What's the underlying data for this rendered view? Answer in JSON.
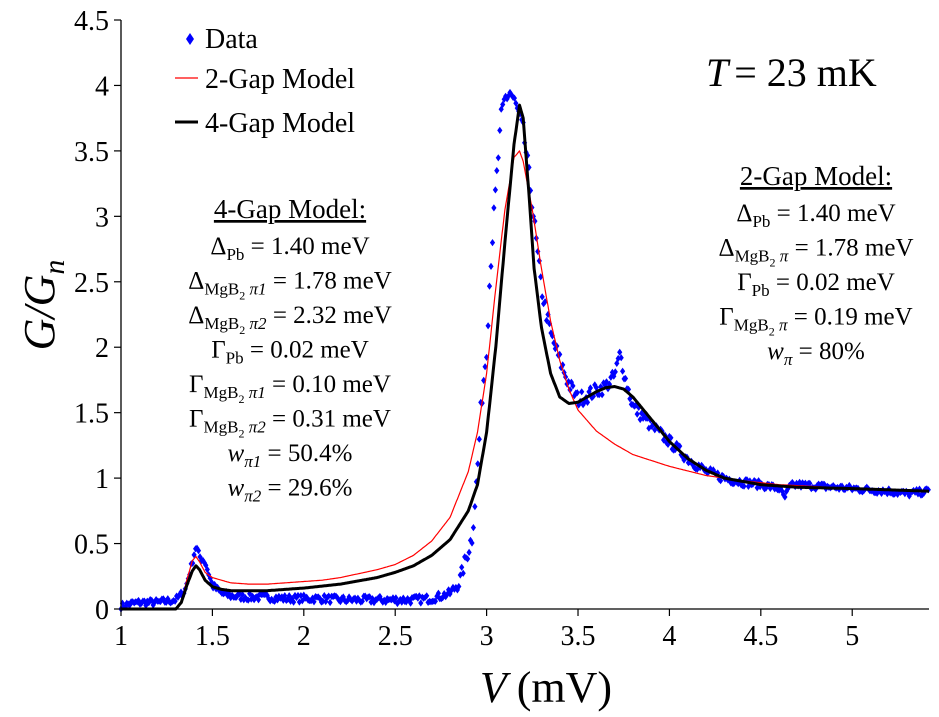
{
  "chart_data": {
    "type": "scatter",
    "title": "",
    "xlabel": "V (mV)",
    "xlabel_var": "V",
    "xlabel_unit": "(mV)",
    "ylabel": "G/Gn",
    "ylabel_main": "G/G",
    "ylabel_sub": "n",
    "xlim": [
      1,
      5.42
    ],
    "ylim": [
      0,
      4.5
    ],
    "xticks": [
      1,
      1.5,
      2,
      2.5,
      3,
      3.5,
      4,
      4.5,
      5
    ],
    "xtick_labels": [
      "1",
      "1.5",
      "2",
      "2.5",
      "3",
      "3.5",
      "4",
      "4.5",
      "5"
    ],
    "yticks": [
      0,
      0.5,
      1,
      1.5,
      2,
      2.5,
      3,
      3.5,
      4,
      4.5
    ],
    "ytick_labels": [
      "0",
      "0.5",
      "1",
      "1.5",
      "2",
      "2.5",
      "3",
      "3.5",
      "4",
      "4.5"
    ],
    "grid": false,
    "legend_position": "top-left",
    "temperature_label": "T = 23 mK",
    "temperature_var": "T",
    "temperature_value": "= 23 mK",
    "series": [
      {
        "name": "Data",
        "kind": "markers",
        "color": "#0000ff",
        "anchor_x": [
          1.0,
          1.05,
          1.1,
          1.2,
          1.3,
          1.35,
          1.38,
          1.41,
          1.43,
          1.46,
          1.5,
          1.55,
          1.6,
          1.7,
          1.8,
          1.9,
          2.0,
          2.1,
          2.2,
          2.3,
          2.4,
          2.5,
          2.6,
          2.7,
          2.8,
          2.85,
          2.88,
          2.9,
          2.92,
          2.95,
          2.97,
          3.0,
          3.02,
          3.05,
          3.08,
          3.1,
          3.13,
          3.15,
          3.17,
          3.2,
          3.22,
          3.25,
          3.28,
          3.3,
          3.35,
          3.4,
          3.45,
          3.5,
          3.55,
          3.6,
          3.65,
          3.7,
          3.73,
          3.76,
          3.8,
          3.9,
          4.0,
          4.1,
          4.2,
          4.3,
          4.4,
          4.5,
          4.6,
          4.63,
          4.66,
          4.7,
          4.8,
          4.9,
          5.0,
          5.1,
          5.2,
          5.3,
          5.42
        ],
        "anchor_y": [
          0.02,
          0.04,
          0.05,
          0.05,
          0.07,
          0.14,
          0.3,
          0.48,
          0.4,
          0.36,
          0.18,
          0.12,
          0.1,
          0.09,
          0.09,
          0.08,
          0.08,
          0.08,
          0.07,
          0.07,
          0.07,
          0.07,
          0.07,
          0.08,
          0.12,
          0.2,
          0.35,
          0.45,
          0.55,
          1.05,
          1.55,
          2.0,
          2.6,
          3.2,
          3.75,
          3.9,
          3.95,
          3.88,
          3.8,
          3.65,
          3.45,
          3.1,
          2.7,
          2.45,
          2.1,
          1.9,
          1.72,
          1.6,
          1.63,
          1.67,
          1.7,
          1.78,
          1.95,
          1.75,
          1.55,
          1.4,
          1.28,
          1.15,
          1.05,
          1.0,
          0.97,
          0.95,
          0.92,
          0.85,
          0.94,
          0.95,
          0.94,
          0.93,
          0.92,
          0.91,
          0.9,
          0.88,
          0.9
        ],
        "spread_x": [
          1.0,
          2.8,
          2.95,
          3.4,
          3.75,
          4.6,
          5.42
        ],
        "spread_y": [
          0.025,
          0.03,
          0.08,
          0.06,
          0.05,
          0.025,
          0.025
        ],
        "x_step": 0.008
      },
      {
        "name": "2-Gap Model",
        "kind": "line",
        "color": "#ff0000",
        "stroke_width": 1.2,
        "x": [
          1.0,
          1.3,
          1.33,
          1.36,
          1.39,
          1.41,
          1.43,
          1.46,
          1.5,
          1.55,
          1.6,
          1.7,
          1.8,
          1.9,
          2.0,
          2.1,
          2.2,
          2.3,
          2.4,
          2.5,
          2.6,
          2.7,
          2.8,
          2.9,
          2.95,
          3.0,
          3.05,
          3.1,
          3.15,
          3.18,
          3.2,
          3.25,
          3.3,
          3.35,
          3.4,
          3.45,
          3.5,
          3.6,
          3.7,
          3.8,
          4.0,
          4.2,
          4.4,
          4.6,
          5.0,
          5.42
        ],
        "y": [
          0.0,
          0.0,
          0.05,
          0.22,
          0.37,
          0.4,
          0.36,
          0.28,
          0.24,
          0.22,
          0.2,
          0.19,
          0.19,
          0.2,
          0.21,
          0.22,
          0.24,
          0.27,
          0.3,
          0.34,
          0.41,
          0.52,
          0.7,
          1.05,
          1.35,
          1.8,
          2.45,
          3.05,
          3.45,
          3.5,
          3.42,
          3.05,
          2.6,
          2.2,
          1.9,
          1.68,
          1.52,
          1.36,
          1.26,
          1.18,
          1.09,
          1.02,
          0.98,
          0.95,
          0.92,
          0.9
        ]
      },
      {
        "name": "4-Gap Model",
        "kind": "line",
        "color": "#000000",
        "stroke_width": 3,
        "x": [
          1.0,
          1.3,
          1.33,
          1.36,
          1.39,
          1.41,
          1.43,
          1.46,
          1.5,
          1.55,
          1.6,
          1.7,
          1.8,
          1.9,
          2.0,
          2.2,
          2.4,
          2.5,
          2.6,
          2.7,
          2.8,
          2.9,
          2.95,
          3.0,
          3.05,
          3.1,
          3.15,
          3.18,
          3.2,
          3.23,
          3.26,
          3.3,
          3.35,
          3.4,
          3.45,
          3.5,
          3.55,
          3.6,
          3.65,
          3.7,
          3.75,
          3.8,
          3.9,
          4.0,
          4.1,
          4.2,
          4.3,
          4.5,
          4.7,
          5.0,
          5.42
        ],
        "y": [
          0.0,
          0.0,
          0.05,
          0.18,
          0.29,
          0.33,
          0.3,
          0.22,
          0.17,
          0.15,
          0.14,
          0.14,
          0.14,
          0.15,
          0.16,
          0.19,
          0.24,
          0.28,
          0.33,
          0.41,
          0.53,
          0.75,
          0.95,
          1.35,
          2.0,
          2.8,
          3.55,
          3.85,
          3.75,
          3.2,
          2.6,
          2.15,
          1.8,
          1.62,
          1.57,
          1.58,
          1.62,
          1.66,
          1.69,
          1.7,
          1.68,
          1.62,
          1.45,
          1.28,
          1.15,
          1.06,
          1.0,
          0.95,
          0.93,
          0.92,
          0.9
        ]
      }
    ],
    "annotations": [
      {
        "name": "four-gap-params",
        "heading": "4-Gap Model:",
        "lines": [
          {
            "sym": "Δ",
            "sub": "Pb",
            "value": " = 1.40 meV"
          },
          {
            "sym": "Δ",
            "sub": "MgB",
            "sub2": "2",
            "greek": " π1",
            "value": " = 1.78 meV"
          },
          {
            "sym": "Δ",
            "sub": "MgB",
            "sub2": "2",
            "greek": " π2",
            "value": " = 2.32 meV"
          },
          {
            "sym": "Γ",
            "sub": "Pb",
            "value": " = 0.02 meV"
          },
          {
            "sym": "Γ",
            "sub": "MgB",
            "sub2": "2",
            "greek": " π1",
            "value": " = 0.10 meV"
          },
          {
            "sym": "Γ",
            "sub": "MgB",
            "sub2": "2",
            "greek": " π2",
            "value": " = 0.31 meV"
          },
          {
            "sym": "w",
            "italic": true,
            "greek": "π1",
            "value": " = 50.4%"
          },
          {
            "sym": "w",
            "italic": true,
            "greek": "π2",
            "value": " = 29.6%"
          }
        ]
      },
      {
        "name": "two-gap-params",
        "heading": "2-Gap Model:",
        "lines": [
          {
            "sym": "Δ",
            "sub": "Pb",
            "value": " = 1.40 meV"
          },
          {
            "sym": "Δ",
            "sub": "MgB",
            "sub2": "2",
            "greek": " π",
            "value": " = 1.78 meV"
          },
          {
            "sym": "Γ",
            "sub": "Pb",
            "value": " = 0.02 meV"
          },
          {
            "sym": "Γ",
            "sub": "MgB",
            "sub2": "2",
            "greek": " π",
            "value": " = 0.19 meV"
          },
          {
            "sym": "w",
            "italic": true,
            "greek": "π",
            "value": " = 80%"
          }
        ]
      }
    ]
  }
}
